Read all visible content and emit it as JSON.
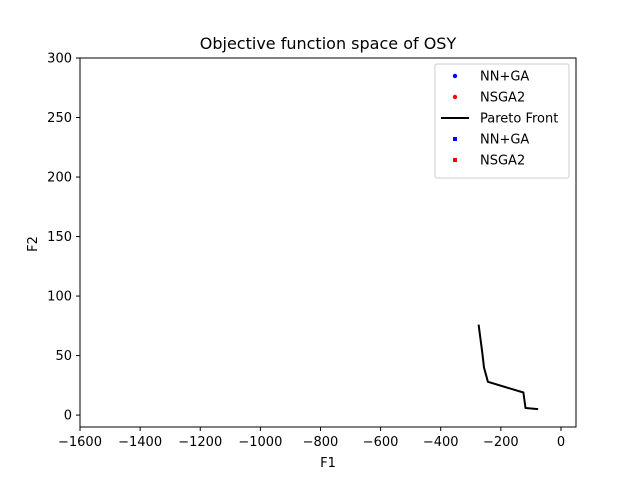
{
  "chart_data": {
    "type": "line",
    "title": "Objective function space of OSY",
    "xlabel": "F1",
    "ylabel": "F2",
    "xlim": [
      -1600,
      50
    ],
    "ylim": [
      -10,
      300
    ],
    "xticks": [
      -1600,
      -1400,
      -1200,
      -1000,
      -800,
      -600,
      -400,
      -200,
      0
    ],
    "yticks": [
      0,
      50,
      100,
      150,
      200,
      250,
      300
    ],
    "xtick_labels": [
      "−1600",
      "−1400",
      "−1200",
      "−1000",
      "−800",
      "−600",
      "−400",
      "−200",
      "0"
    ],
    "ytick_labels": [
      "0",
      "50",
      "100",
      "150",
      "200",
      "250",
      "300"
    ],
    "grid": false,
    "legend_position": "top-right",
    "series": [
      {
        "name": "NN+GA",
        "kind": "scatter",
        "marker": "circle",
        "color": "#0000ff",
        "x": [],
        "y": []
      },
      {
        "name": "NSGA2",
        "kind": "scatter",
        "marker": "circle",
        "color": "#ff0000",
        "x": [],
        "y": []
      },
      {
        "name": "Pareto Front",
        "kind": "line",
        "color": "#000000",
        "x": [
          -274,
          -262,
          -256,
          -243,
          -125,
          -118,
          -76
        ],
        "y": [
          76,
          53,
          40,
          28,
          19,
          6,
          5
        ]
      },
      {
        "name": "NN+GA",
        "kind": "scatter",
        "marker": "square",
        "color": "#0000ff",
        "x": [],
        "y": []
      },
      {
        "name": "NSGA2",
        "kind": "scatter",
        "marker": "square",
        "color": "#ff0000",
        "x": [],
        "y": []
      }
    ]
  }
}
